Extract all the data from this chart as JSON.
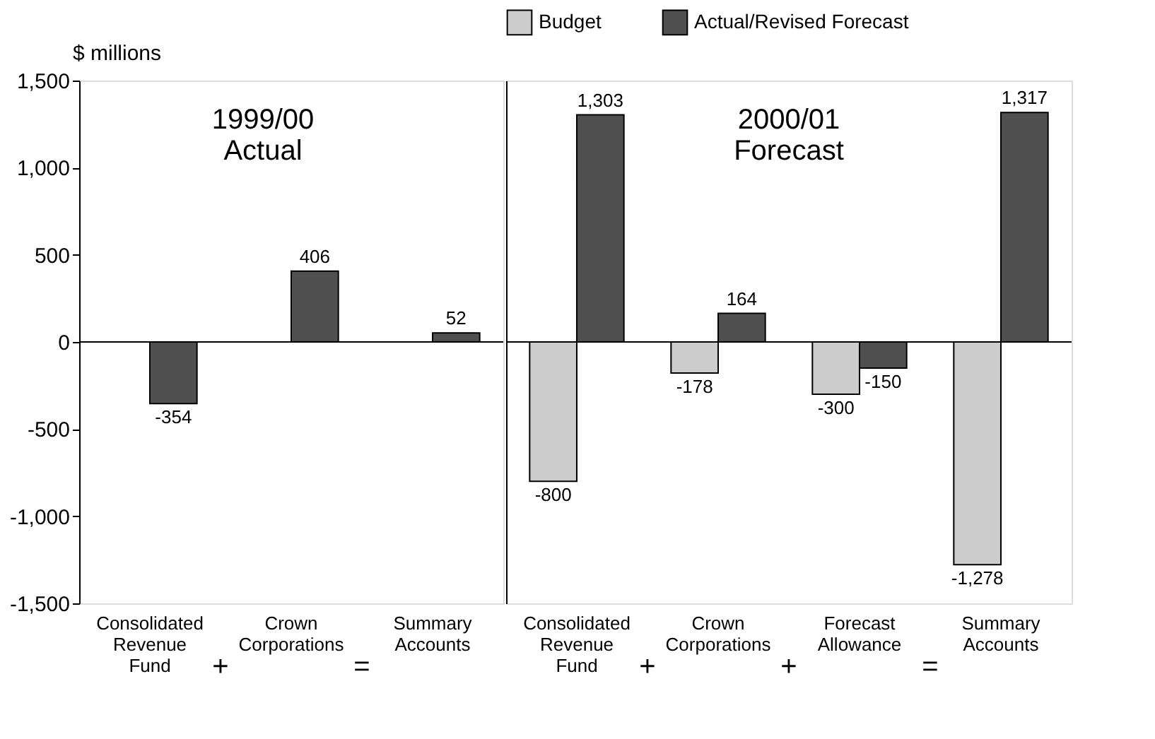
{
  "chart_data": [
    {
      "type": "bar",
      "title": "1999/00 Actual",
      "ylabel": "$ millions",
      "categories": [
        "Consolidated Revenue Fund",
        "Crown Corporations",
        "Summary Accounts"
      ],
      "series": [
        {
          "color": "#cccccc",
          "values": [
            null,
            null,
            null
          ],
          "value_labels": [
            null,
            null,
            null
          ]
        },
        {
          "color": "#505050",
          "values": [
            -354,
            406,
            52
          ],
          "value_labels": [
            "-354",
            "406",
            "52"
          ]
        }
      ],
      "annotations": [
        "+",
        "="
      ],
      "ylim": [
        -1500,
        1500
      ],
      "yticks": [
        {
          "value": -1500,
          "label": "-1,500"
        },
        {
          "value": -1000,
          "label": "-1,000"
        },
        -500,
        0,
        500,
        {
          "value": 1000,
          "label": "1,000"
        },
        {
          "value": 1500,
          "label": "1,500"
        }
      ],
      "ref_lines": [
        {
          "axis": "y",
          "value": 0
        }
      ],
      "grid": false
    },
    {
      "type": "bar",
      "title": "2000/01 Forecast",
      "categories": [
        "Consolidated Revenue Fund",
        "Crown Corporations",
        "Forecast Allowance",
        "Summary Accounts"
      ],
      "series": [
        {
          "name": "Budget",
          "color": "#cccccc",
          "values": [
            -800,
            -178,
            -300,
            -1278
          ],
          "value_labels": [
            "-800",
            "-178",
            "-300",
            "-1,278"
          ]
        },
        {
          "name": "Actual/Revised Forecast",
          "color": "#505050",
          "values": [
            1303,
            164,
            -150,
            1317
          ],
          "value_labels": [
            "1,303",
            "164",
            "-150",
            "1,317"
          ]
        }
      ],
      "annotations": [
        "+",
        "+",
        "="
      ],
      "ylim": [
        -1500,
        1500
      ],
      "ref_lines": [
        {
          "axis": "y",
          "value": 0
        }
      ],
      "tick_labels": "x",
      "legend": "top",
      "grid": false
    }
  ]
}
